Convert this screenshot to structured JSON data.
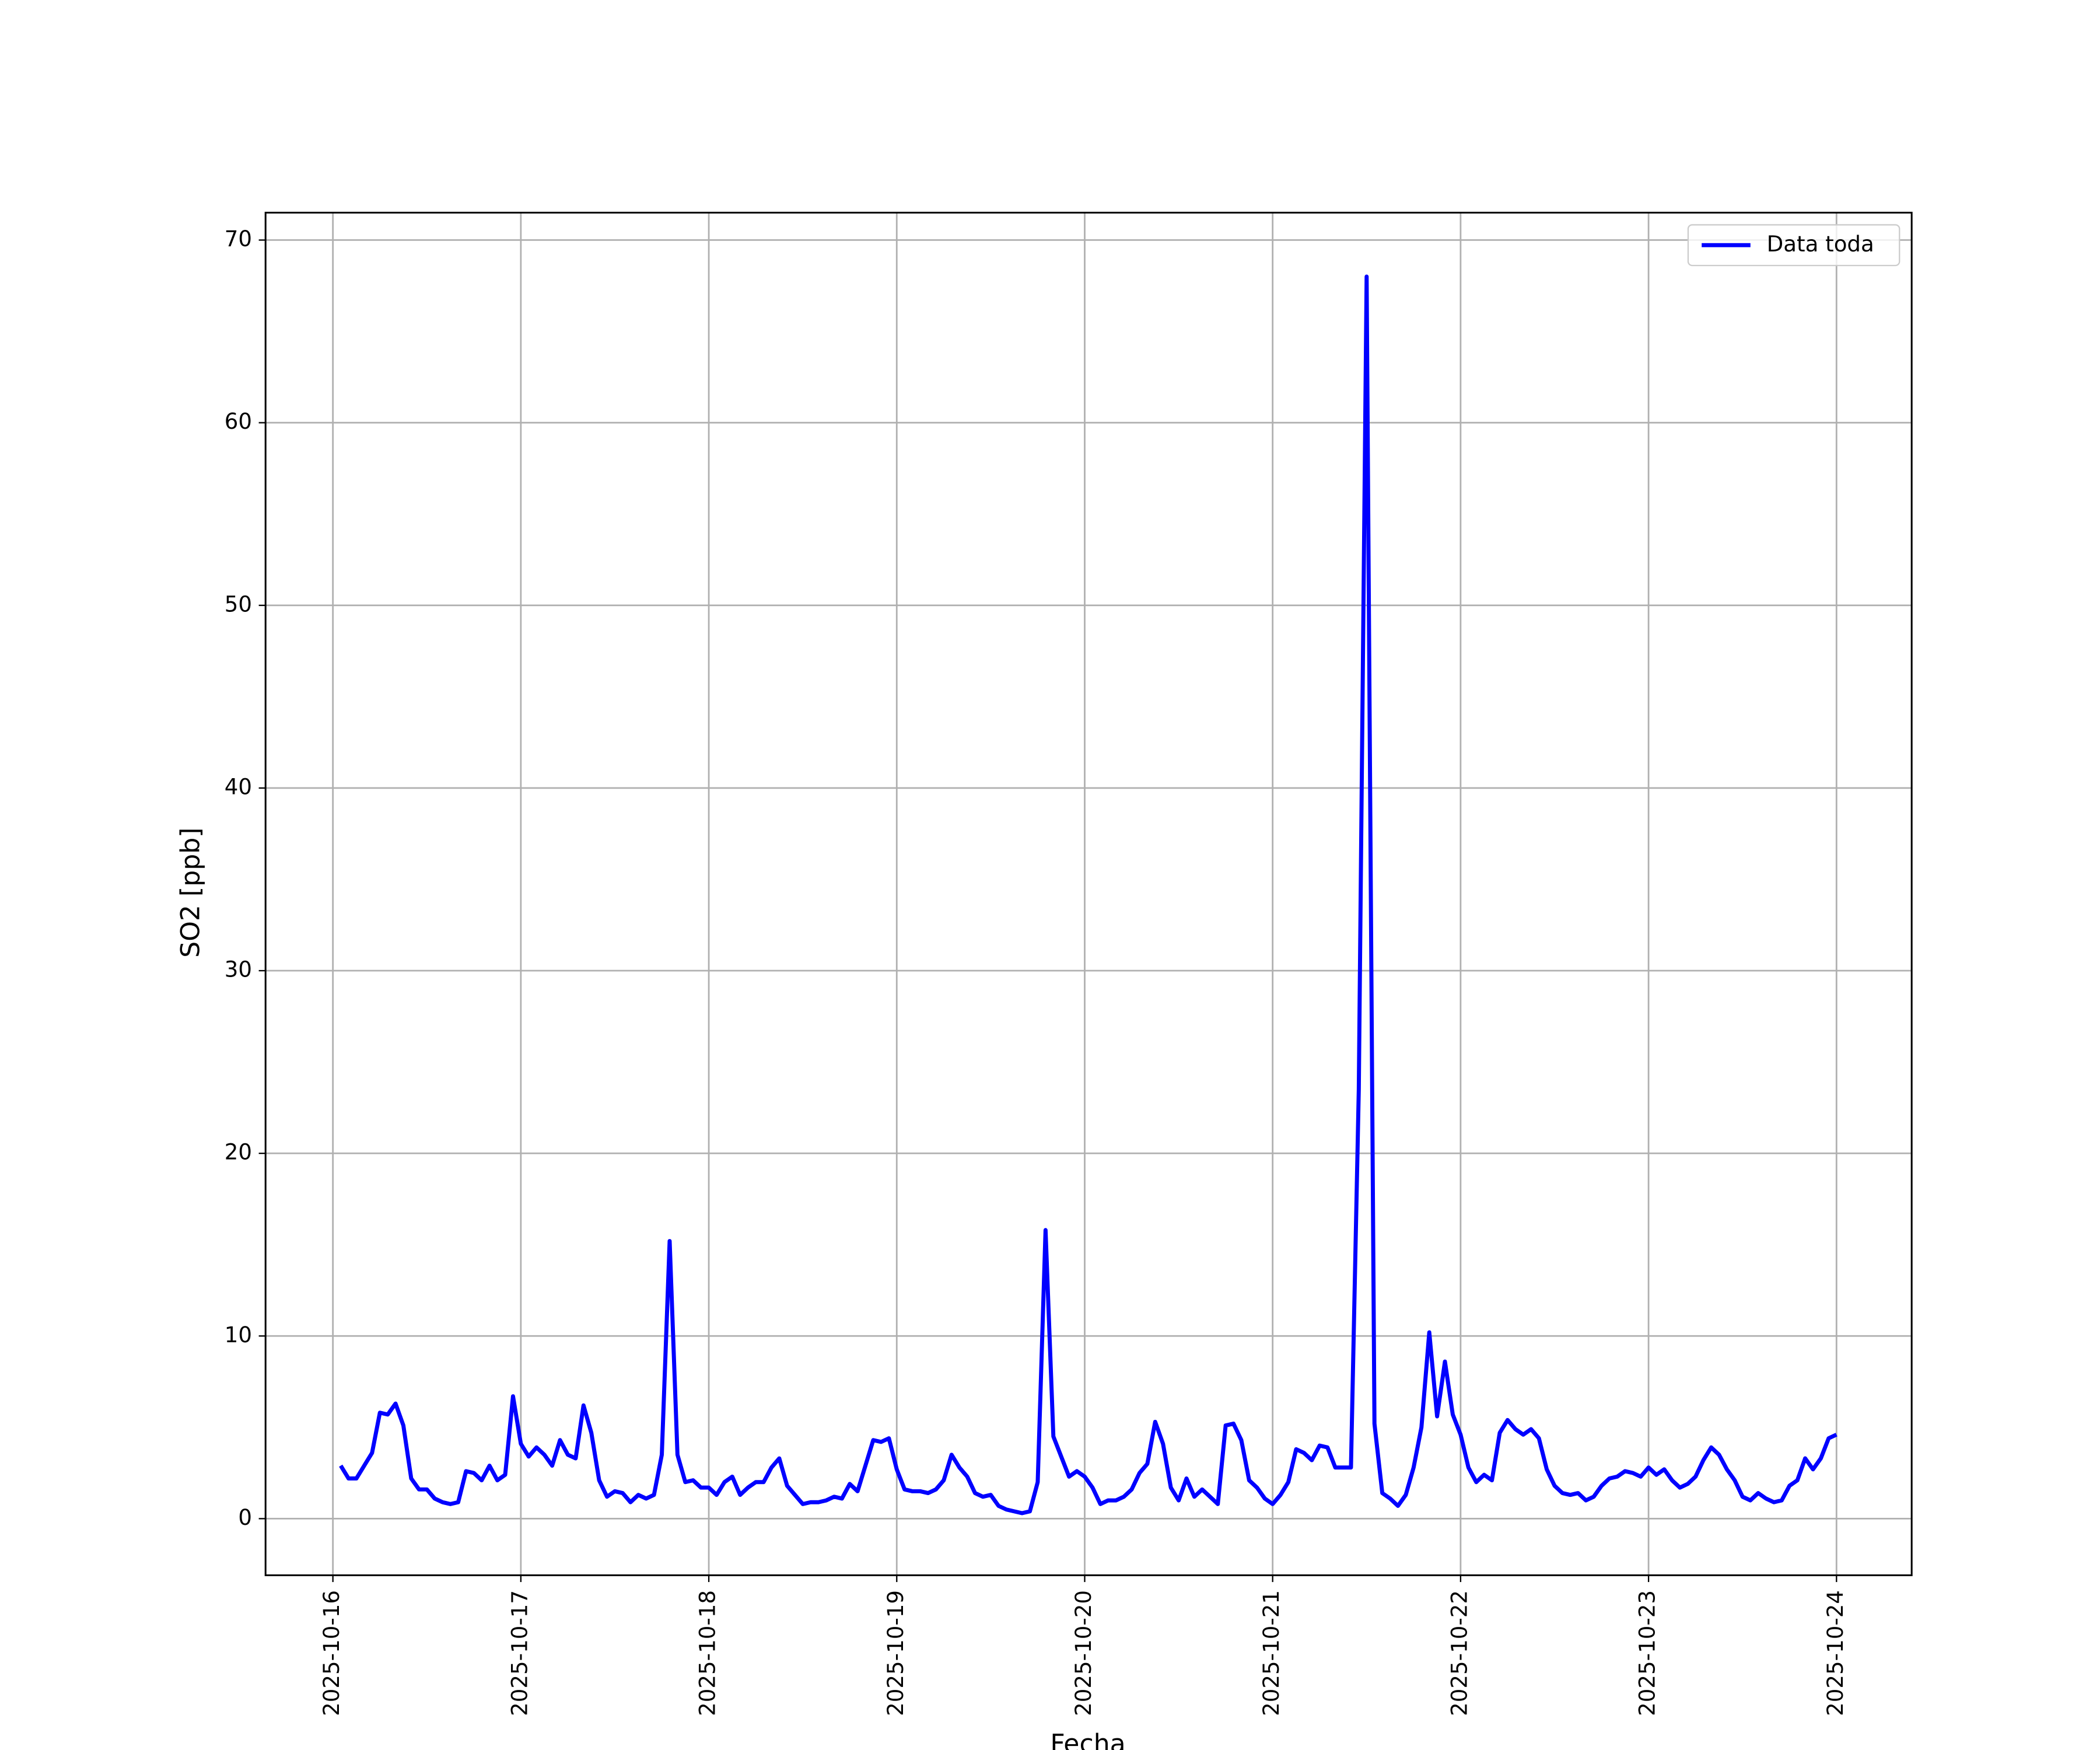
{
  "chart_data": {
    "type": "line",
    "xlabel": "Fecha",
    "ylabel": "SO2 [ppb]",
    "xlim": [
      -8.6,
      201.6
    ],
    "xticks": [
      {
        "value": 0,
        "label": "2025-10-16"
      },
      {
        "value": 24,
        "label": "2025-10-17"
      },
      {
        "value": 48,
        "label": "2025-10-18"
      },
      {
        "value": 72,
        "label": "2025-10-19"
      },
      {
        "value": 96,
        "label": "2025-10-20"
      },
      {
        "value": 120,
        "label": "2025-10-21"
      },
      {
        "value": 144,
        "label": "2025-10-22"
      },
      {
        "value": 168,
        "label": "2025-10-23"
      },
      {
        "value": 192,
        "label": "2025-10-24"
      }
    ],
    "ylim": [
      -3.1,
      71.5
    ],
    "yticks": [
      0,
      10,
      20,
      30,
      40,
      50,
      60,
      70
    ],
    "grid": true,
    "legend": "upper right",
    "x": [
      1,
      2,
      3,
      4,
      5,
      6,
      7,
      8,
      9,
      10,
      11,
      12,
      13,
      14,
      15,
      16,
      17,
      18,
      19,
      20,
      21,
      22,
      23,
      24,
      25,
      26,
      27,
      28,
      29,
      30,
      31,
      32,
      33,
      34,
      35,
      36,
      37,
      38,
      39,
      40,
      41,
      42,
      43,
      44,
      45,
      46,
      47,
      48,
      49,
      50,
      51,
      52,
      53,
      54,
      55,
      56,
      57,
      58,
      59,
      60,
      61,
      62,
      63,
      64,
      65,
      66,
      67,
      68,
      69,
      70,
      71,
      72,
      73,
      74,
      75,
      76,
      77,
      78,
      79,
      80,
      81,
      82,
      83,
      84,
      85,
      86,
      87,
      88,
      89,
      90,
      91,
      92,
      93,
      94,
      95,
      96,
      97,
      98,
      99,
      100,
      101,
      102,
      103,
      104,
      105,
      106,
      107,
      108,
      109,
      110,
      111,
      112,
      113,
      114,
      115,
      116,
      117,
      118,
      119,
      120,
      121,
      122,
      123,
      124,
      125,
      126,
      127,
      128,
      129,
      130,
      131,
      132,
      133,
      134,
      135,
      136,
      137,
      138,
      139,
      140,
      141,
      142,
      143,
      144,
      145,
      146,
      147,
      148,
      149,
      150,
      151,
      152,
      153,
      154,
      155,
      156,
      157,
      158,
      159,
      160,
      161,
      162,
      163,
      164,
      165,
      166,
      167,
      168,
      169,
      170,
      171,
      172,
      173,
      174,
      175,
      176,
      177,
      178,
      179,
      180,
      181,
      182,
      183,
      184,
      185,
      186,
      187,
      188,
      189,
      190,
      191,
      192
    ],
    "series": [
      {
        "name": "Data toda",
        "color": "#0000ff",
        "values": [
          2.9,
          2.2,
          2.2,
          2.9,
          3.6,
          5.8,
          5.7,
          6.3,
          5.1,
          2.2,
          1.6,
          1.6,
          1.1,
          0.9,
          0.8,
          0.9,
          2.6,
          2.5,
          2.1,
          2.9,
          2.1,
          2.4,
          6.7,
          4.1,
          3.4,
          3.9,
          3.5,
          2.9,
          4.3,
          3.5,
          3.3,
          6.2,
          4.7,
          2.1,
          1.2,
          1.5,
          1.4,
          0.9,
          1.3,
          1.1,
          1.3,
          3.5,
          15.2,
          3.5,
          2.0,
          2.1,
          1.7,
          1.7,
          1.3,
          2.0,
          2.3,
          1.3,
          1.7,
          2.0,
          2.0,
          2.8,
          3.3,
          1.8,
          1.3,
          0.8,
          0.9,
          0.9,
          1.0,
          1.2,
          1.1,
          1.9,
          1.5,
          2.9,
          4.3,
          4.2,
          4.4,
          2.7,
          1.6,
          1.5,
          1.5,
          1.4,
          1.6,
          2.1,
          3.5,
          2.8,
          2.3,
          1.4,
          1.2,
          1.3,
          0.7,
          0.5,
          0.4,
          0.3,
          0.4,
          2.0,
          15.8,
          4.5,
          3.4,
          2.3,
          2.6,
          2.3,
          1.7,
          0.8,
          1.0,
          1.0,
          1.2,
          1.6,
          2.5,
          3.0,
          5.3,
          4.1,
          1.7,
          1.0,
          2.2,
          1.2,
          1.6,
          1.2,
          0.8,
          5.1,
          5.2,
          4.3,
          2.1,
          1.7,
          1.1,
          0.8,
          1.3,
          2.0,
          3.8,
          3.6,
          3.2,
          4.0,
          3.9,
          2.8,
          2.8,
          2.8,
          23.5,
          68.0,
          5.2,
          1.4,
          1.1,
          0.7,
          1.3,
          2.8,
          5.0,
          10.2,
          5.6,
          8.6,
          5.7,
          4.6,
          2.8,
          2.0,
          2.4,
          2.1,
          4.7,
          5.4,
          4.9,
          4.6,
          4.9,
          4.4,
          2.7,
          1.8,
          1.4,
          1.3,
          1.4,
          1.0,
          1.2,
          1.8,
          2.2,
          2.3,
          2.6,
          2.5,
          2.3,
          2.8,
          2.4,
          2.7,
          2.1,
          1.7,
          1.9,
          2.3,
          3.2,
          3.9,
          3.5,
          2.7,
          2.1,
          1.2,
          1.0,
          1.4,
          1.1,
          0.9,
          1.0,
          1.8,
          2.1,
          3.3,
          2.7,
          3.3,
          4.4,
          4.6
        ]
      }
    ]
  }
}
